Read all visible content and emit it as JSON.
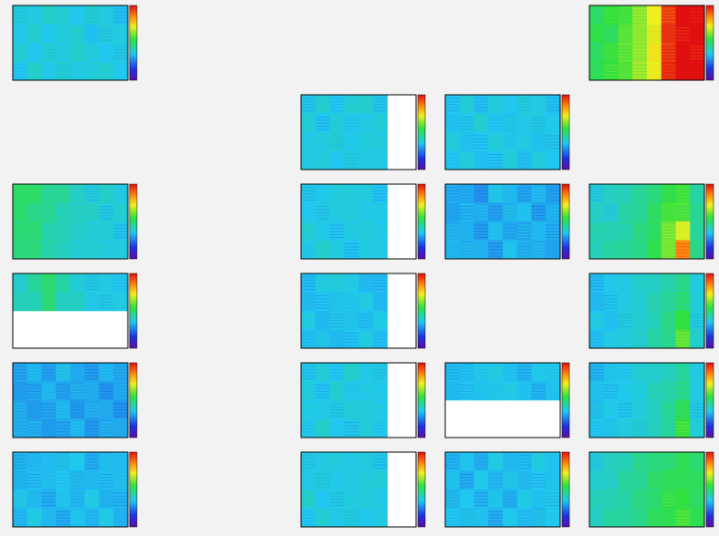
{
  "chart_data": [
    {
      "type": "heatmap",
      "row": 0,
      "col": 0,
      "zlim": [
        0,
        100
      ],
      "z": [
        [
          38,
          36,
          40,
          37,
          35,
          39,
          36,
          34
        ],
        [
          36,
          40,
          35,
          38,
          37,
          34,
          38,
          36
        ],
        [
          37,
          35,
          39,
          36,
          40,
          36,
          35,
          37
        ],
        [
          35,
          38,
          36,
          39,
          36,
          38,
          37,
          35
        ]
      ]
    },
    {
      "type": "heatmap",
      "row": 0,
      "col": 3,
      "zlim": [
        0,
        100
      ],
      "z": [
        [
          52,
          55,
          57,
          62,
          72,
          95,
          100,
          100
        ],
        [
          54,
          53,
          58,
          64,
          70,
          96,
          100,
          100
        ],
        [
          50,
          56,
          60,
          63,
          74,
          94,
          100,
          100
        ],
        [
          53,
          55,
          58,
          66,
          71,
          97,
          100,
          100
        ]
      ]
    },
    {
      "type": "heatmap",
      "row": 1,
      "col": 1,
      "zlim": [
        0,
        100
      ],
      "z": [
        [
          36,
          38,
          35,
          37,
          39,
          36,
          null,
          null
        ],
        [
          38,
          35,
          37,
          36,
          35,
          38,
          null,
          null
        ],
        [
          35,
          37,
          39,
          35,
          38,
          36,
          null,
          null
        ],
        [
          37,
          36,
          35,
          38,
          36,
          37,
          null,
          null
        ]
      ]
    },
    {
      "type": "heatmap",
      "row": 1,
      "col": 2,
      "zlim": [
        0,
        100
      ],
      "z": [
        [
          35,
          37,
          34,
          36,
          35,
          38,
          36,
          34
        ],
        [
          34,
          36,
          38,
          35,
          34,
          36,
          37,
          35
        ],
        [
          36,
          34,
          35,
          37,
          36,
          35,
          34,
          36
        ],
        [
          35,
          36,
          34,
          35,
          37,
          34,
          36,
          35
        ]
      ]
    },
    {
      "type": "heatmap",
      "row": 2,
      "col": 0,
      "zlim": [
        0,
        100
      ],
      "z": [
        [
          52,
          50,
          46,
          44,
          40,
          38,
          39,
          37
        ],
        [
          50,
          48,
          45,
          42,
          39,
          40,
          37,
          38
        ],
        [
          48,
          49,
          44,
          41,
          40,
          37,
          38,
          36
        ],
        [
          49,
          47,
          43,
          42,
          38,
          39,
          36,
          37
        ]
      ]
    },
    {
      "type": "heatmap",
      "row": 2,
      "col": 1,
      "zlim": [
        0,
        100
      ],
      "z": [
        [
          36,
          35,
          38,
          36,
          37,
          35,
          null,
          null
        ],
        [
          35,
          37,
          36,
          38,
          35,
          36,
          null,
          null
        ],
        [
          37,
          36,
          35,
          36,
          38,
          35,
          null,
          null
        ],
        [
          36,
          38,
          37,
          35,
          36,
          37,
          null,
          null
        ]
      ]
    },
    {
      "type": "heatmap",
      "row": 2,
      "col": 2,
      "zlim": [
        0,
        100
      ],
      "z": [
        [
          32,
          30,
          28,
          34,
          33,
          31,
          32,
          30
        ],
        [
          30,
          33,
          31,
          30,
          32,
          34,
          30,
          31
        ],
        [
          31,
          32,
          30,
          33,
          31,
          30,
          33,
          32
        ],
        [
          33,
          31,
          32,
          30,
          34,
          32,
          31,
          30
        ]
      ]
    },
    {
      "type": "heatmap",
      "row": 2,
      "col": 3,
      "zlim": [
        0,
        100
      ],
      "z": [
        [
          38,
          40,
          42,
          44,
          48,
          55,
          56,
          44
        ],
        [
          40,
          39,
          43,
          46,
          50,
          57,
          58,
          45
        ],
        [
          41,
          42,
          44,
          47,
          52,
          60,
          70,
          46
        ],
        [
          42,
          43,
          45,
          48,
          53,
          62,
          85,
          47
        ]
      ]
    },
    {
      "type": "heatmap",
      "row": 3,
      "col": 0,
      "zlim": [
        0,
        100
      ],
      "z": [
        [
          40,
          44,
          50,
          42,
          38,
          37,
          36,
          35
        ],
        [
          41,
          43,
          48,
          41,
          39,
          36,
          37,
          36
        ],
        [
          null,
          null,
          null,
          null,
          null,
          null,
          null,
          null
        ],
        [
          null,
          null,
          null,
          null,
          null,
          null,
          null,
          null
        ]
      ]
    },
    {
      "type": "heatmap",
      "row": 3,
      "col": 1,
      "zlim": [
        0,
        100
      ],
      "z": [
        [
          34,
          36,
          38,
          35,
          33,
          34,
          null,
          null
        ],
        [
          33,
          35,
          34,
          36,
          35,
          33,
          null,
          null
        ],
        [
          35,
          33,
          36,
          34,
          34,
          35,
          null,
          null
        ],
        [
          34,
          34,
          33,
          35,
          36,
          34,
          null,
          null
        ]
      ]
    },
    {
      "type": "heatmap",
      "row": 3,
      "col": 3,
      "zlim": [
        0,
        100
      ],
      "z": [
        [
          34,
          35,
          37,
          38,
          40,
          44,
          46,
          38
        ],
        [
          33,
          36,
          36,
          39,
          41,
          45,
          50,
          37
        ],
        [
          35,
          34,
          38,
          38,
          42,
          46,
          55,
          38
        ],
        [
          34,
          35,
          37,
          40,
          43,
          47,
          58,
          39
        ]
      ]
    },
    {
      "type": "heatmap",
      "row": 4,
      "col": 0,
      "zlim": [
        0,
        100
      ],
      "z": [
        [
          31,
          32,
          30,
          33,
          31,
          30,
          32,
          31
        ],
        [
          29,
          31,
          32,
          30,
          30,
          31,
          29,
          30
        ],
        [
          30,
          29,
          31,
          32,
          29,
          30,
          31,
          29
        ],
        [
          32,
          30,
          29,
          31,
          32,
          29,
          30,
          31
        ]
      ]
    },
    {
      "type": "heatmap",
      "row": 4,
      "col": 1,
      "zlim": [
        0,
        100
      ],
      "z": [
        [
          36,
          37,
          35,
          38,
          36,
          37,
          null,
          null
        ],
        [
          37,
          35,
          38,
          36,
          35,
          36,
          null,
          null
        ],
        [
          35,
          36,
          37,
          37,
          38,
          35,
          null,
          null
        ],
        [
          36,
          38,
          35,
          36,
          37,
          36,
          null,
          null
        ]
      ]
    },
    {
      "type": "heatmap",
      "row": 4,
      "col": 2,
      "zlim": [
        0,
        100
      ],
      "z": [
        [
          34,
          33,
          36,
          35,
          34,
          33,
          35,
          36
        ],
        [
          33,
          35,
          34,
          36,
          35,
          34,
          33,
          34
        ],
        [
          null,
          null,
          null,
          null,
          null,
          null,
          null,
          null
        ],
        [
          null,
          null,
          null,
          null,
          null,
          null,
          null,
          null
        ]
      ]
    },
    {
      "type": "heatmap",
      "row": 4,
      "col": 3,
      "zlim": [
        0,
        100
      ],
      "z": [
        [
          33,
          34,
          36,
          37,
          39,
          42,
          44,
          37
        ],
        [
          34,
          35,
          35,
          38,
          40,
          43,
          48,
          36
        ],
        [
          33,
          36,
          36,
          37,
          41,
          44,
          52,
          37
        ],
        [
          35,
          34,
          37,
          39,
          40,
          45,
          55,
          38
        ]
      ]
    },
    {
      "type": "heatmap",
      "row": 5,
      "col": 0,
      "zlim": [
        0,
        100
      ],
      "z": [
        [
          33,
          32,
          34,
          33,
          35,
          32,
          33,
          34
        ],
        [
          32,
          34,
          33,
          35,
          32,
          33,
          34,
          33
        ],
        [
          34,
          33,
          32,
          34,
          33,
          35,
          32,
          33
        ],
        [
          33,
          35,
          33,
          32,
          34,
          33,
          35,
          32
        ]
      ]
    },
    {
      "type": "heatmap",
      "row": 5,
      "col": 1,
      "zlim": [
        0,
        100
      ],
      "z": [
        [
          37,
          36,
          38,
          35,
          37,
          36,
          null,
          null
        ],
        [
          36,
          38,
          35,
          37,
          36,
          38,
          null,
          null
        ],
        [
          38,
          35,
          37,
          36,
          38,
          35,
          null,
          null
        ],
        [
          35,
          37,
          36,
          38,
          35,
          37,
          null,
          null
        ]
      ]
    },
    {
      "type": "heatmap",
      "row": 5,
      "col": 2,
      "zlim": [
        0,
        100
      ],
      "z": [
        [
          33,
          34,
          32,
          35,
          33,
          34,
          36,
          35
        ],
        [
          34,
          32,
          35,
          33,
          34,
          33,
          35,
          34
        ],
        [
          32,
          35,
          33,
          34,
          32,
          35,
          34,
          36
        ],
        [
          35,
          33,
          34,
          32,
          35,
          34,
          33,
          35
        ]
      ]
    },
    {
      "type": "heatmap",
      "row": 5,
      "col": 3,
      "zlim": [
        0,
        100
      ],
      "z": [
        [
          38,
          40,
          42,
          45,
          48,
          50,
          52,
          50
        ],
        [
          39,
          41,
          44,
          46,
          49,
          52,
          54,
          51
        ],
        [
          40,
          42,
          45,
          47,
          50,
          53,
          55,
          52
        ],
        [
          41,
          43,
          44,
          48,
          51,
          54,
          56,
          53
        ]
      ]
    }
  ]
}
